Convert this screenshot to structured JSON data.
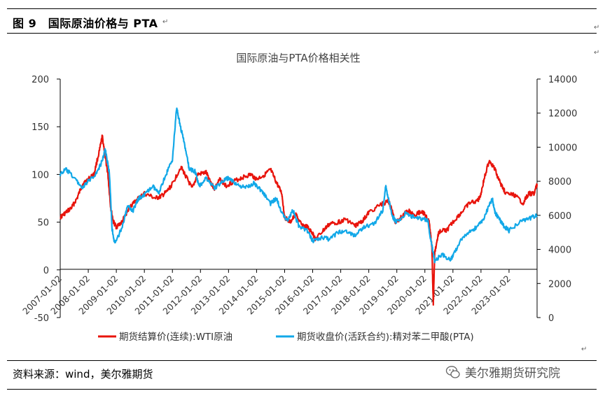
{
  "figure": {
    "title": "图 9　国际原油价格与 PTA",
    "source": "资料来源：wind，美尔雅期货",
    "watermark": "美尔雅期货研究院",
    "para_mark": "↵"
  },
  "colors": {
    "wti": "#e8140c",
    "pta": "#12a8e8",
    "axis": "#000000"
  },
  "chart_data": {
    "type": "line",
    "title": "国际原油与PTA价格相关性",
    "y_left": {
      "ticks": [
        -50,
        0,
        50,
        100,
        150,
        200
      ],
      "min": -50,
      "max": 200
    },
    "y_right": {
      "ticks": [
        0,
        2000,
        4000,
        6000,
        8000,
        10000,
        12000,
        14000
      ],
      "min": 0,
      "max": 14000
    },
    "x_ticks": [
      "2007-01-02",
      "2008-01-02",
      "2009-01-02",
      "2010-01-02",
      "2011-01-02",
      "2012-01-02",
      "2013-01-02",
      "2014-01-02",
      "2015-01-02",
      "2016-01-02",
      "2017-01-02",
      "2018-01-02",
      "2019-01-02",
      "2020-01-02",
      "2021-01-02",
      "2022-01-02",
      "2023-01-02"
    ],
    "x_range": [
      2007.0,
      2024.0
    ],
    "legend_position": "bottom",
    "series": [
      {
        "name": "期货结算价(连续):WTI原油",
        "axis": "left",
        "x": [
          2007.0,
          2007.2,
          2007.4,
          2007.6,
          2007.8,
          2008.0,
          2008.2,
          2008.4,
          2008.5,
          2008.6,
          2008.7,
          2008.8,
          2008.9,
          2009.0,
          2009.2,
          2009.4,
          2009.6,
          2009.8,
          2010.0,
          2010.4,
          2010.6,
          2010.8,
          2011.0,
          2011.3,
          2011.5,
          2011.7,
          2011.9,
          2012.2,
          2012.4,
          2012.5,
          2012.7,
          2012.9,
          2013.2,
          2013.5,
          2013.8,
          2014.0,
          2014.3,
          2014.5,
          2014.7,
          2014.9,
          2015.0,
          2015.2,
          2015.4,
          2015.6,
          2015.8,
          2016.0,
          2016.1,
          2016.4,
          2016.6,
          2016.9,
          2017.2,
          2017.5,
          2017.8,
          2018.0,
          2018.4,
          2018.7,
          2018.8,
          2018.95,
          2019.2,
          2019.4,
          2019.6,
          2019.9,
          2020.0,
          2020.15,
          2020.25,
          2020.3,
          2020.35,
          2020.5,
          2020.8,
          2021.0,
          2021.3,
          2021.6,
          2021.9,
          2022.0,
          2022.15,
          2022.3,
          2022.5,
          2022.7,
          2022.9,
          2023.2,
          2023.5,
          2023.7,
          2023.9,
          2024.0
        ],
        "y": [
          55,
          60,
          65,
          75,
          90,
          95,
          100,
          125,
          140,
          120,
          100,
          65,
          50,
          45,
          50,
          62,
          70,
          75,
          80,
          75,
          77,
          82,
          90,
          108,
          97,
          85,
          100,
          102,
          90,
          85,
          95,
          88,
          93,
          97,
          100,
          95,
          100,
          105,
          92,
          80,
          55,
          50,
          58,
          47,
          45,
          38,
          32,
          42,
          48,
          50,
          53,
          46,
          52,
          60,
          68,
          72,
          65,
          50,
          56,
          63,
          58,
          61,
          58,
          50,
          25,
          -37,
          18,
          40,
          42,
          50,
          60,
          70,
          73,
          80,
          100,
          115,
          105,
          90,
          80,
          78,
          70,
          80,
          80,
          90
        ],
        "style": {
          "color_ref": "wti"
        }
      },
      {
        "name": "期货收盘价(活跃合约):精对苯二甲酸(PTA)",
        "axis": "right",
        "x": [
          2007.0,
          2007.2,
          2007.5,
          2007.8,
          2008.0,
          2008.3,
          2008.5,
          2008.6,
          2008.75,
          2008.85,
          2008.95,
          2009.2,
          2009.4,
          2009.6,
          2009.8,
          2010.0,
          2010.3,
          2010.5,
          2010.8,
          2011.0,
          2011.15,
          2011.25,
          2011.45,
          2011.6,
          2011.8,
          2011.95,
          2012.2,
          2012.5,
          2012.8,
          2013.0,
          2013.3,
          2013.6,
          2013.9,
          2014.2,
          2014.5,
          2014.7,
          2014.9,
          2015.1,
          2015.3,
          2015.5,
          2015.8,
          2016.0,
          2016.3,
          2016.6,
          2016.9,
          2017.2,
          2017.5,
          2017.8,
          2018.2,
          2018.5,
          2018.6,
          2018.7,
          2018.85,
          2019.0,
          2019.3,
          2019.6,
          2019.9,
          2020.1,
          2020.25,
          2020.35,
          2020.6,
          2020.9,
          2021.0,
          2021.3,
          2021.6,
          2021.9,
          2022.1,
          2022.4,
          2022.5,
          2022.6,
          2022.8,
          2023.0,
          2023.4,
          2023.7,
          2024.0
        ],
        "y": [
          8400,
          8700,
          8200,
          7600,
          8000,
          8500,
          9200,
          9900,
          8500,
          5200,
          4300,
          5300,
          6500,
          6300,
          7000,
          7200,
          7700,
          7300,
          8500,
          9300,
          12300,
          11500,
          10000,
          8700,
          8600,
          7700,
          8200,
          7600,
          8000,
          8200,
          7800,
          7600,
          7900,
          7400,
          6700,
          7000,
          6200,
          5700,
          6300,
          5400,
          5100,
          4500,
          4700,
          4600,
          5000,
          5100,
          4800,
          5300,
          5500,
          6300,
          7700,
          7000,
          5900,
          5600,
          6100,
          5900,
          5800,
          5700,
          4200,
          3300,
          3700,
          3400,
          3600,
          4600,
          5000,
          5400,
          5800,
          7000,
          6200,
          5900,
          5400,
          5100,
          5600,
          5800,
          6000
        ],
        "style": {
          "color_ref": "pta"
        }
      }
    ]
  }
}
